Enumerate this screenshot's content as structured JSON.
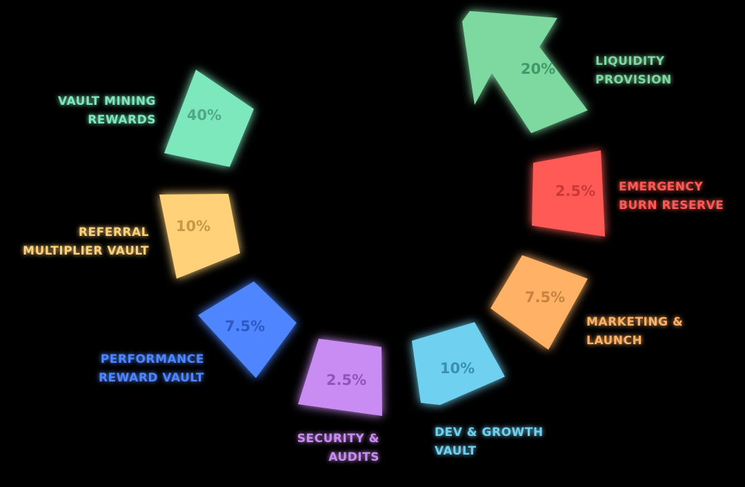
{
  "chart_data": {
    "type": "pie",
    "title": "",
    "segments": [
      {
        "label_lines": [
          "VAULT MINING",
          "REWARDS"
        ],
        "value_text": "40%",
        "value": 40,
        "color": "#7ee8bd",
        "text_color": "#4fa888"
      },
      {
        "label_lines": [
          "LIQUIDITY",
          "PROVISION"
        ],
        "value_text": "20%",
        "value": 20,
        "color": "#7ed9a0",
        "text_color": "#3e9a66"
      },
      {
        "label_lines": [
          "EMERGENCY",
          "BURN RESERVE"
        ],
        "value_text": "2.5%",
        "value": 2.5,
        "color": "#ff5a55",
        "text_color": "#c93a36"
      },
      {
        "label_lines": [
          "MARKETING &",
          "LAUNCH"
        ],
        "value_text": "7.5%",
        "value": 7.5,
        "color": "#ffb266",
        "text_color": "#c7823f"
      },
      {
        "label_lines": [
          "DEV & GROWTH",
          "VAULT"
        ],
        "value_text": "10%",
        "value": 10,
        "color": "#6fd0f0",
        "text_color": "#3a8fb0"
      },
      {
        "label_lines": [
          "SECURITY &",
          "AUDITS"
        ],
        "value_text": "2.5%",
        "value": 2.5,
        "color": "#c98cf2",
        "text_color": "#8e56bb"
      },
      {
        "label_lines": [
          "PERFORMANCE",
          "REWARD VAULT"
        ],
        "value_text": "7.5%",
        "value": 7.5,
        "color": "#4f86ff",
        "text_color": "#2e58c4"
      },
      {
        "label_lines": [
          "REFERRAL",
          "MULTIPLIER VAULT"
        ],
        "value_text": "10%",
        "value": 10,
        "color": "#ffd27a",
        "text_color": "#c39a45"
      }
    ]
  }
}
